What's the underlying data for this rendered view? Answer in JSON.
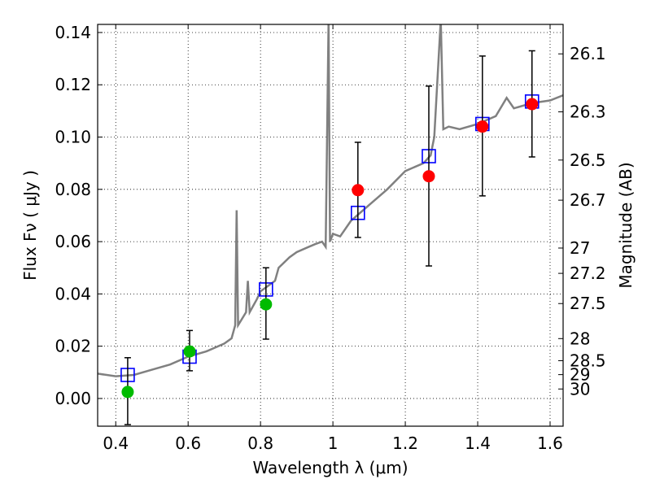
{
  "chart_data": {
    "type": "scatter",
    "title": "",
    "xlabel": "Wavelength  λ (μm)",
    "ylabel": "Flux  Fν  ( μJy )",
    "ylabel_right": "Magnitude (AB)",
    "xlim": [
      0.35,
      1.636
    ],
    "ylim": [
      -0.0106,
      0.1431
    ],
    "grid": true,
    "x_ticks": [
      0.4,
      0.6,
      0.8,
      1.0,
      1.2,
      1.4,
      1.6
    ],
    "x_tick_labels": [
      "0.4",
      "0.6",
      "0.8",
      "1",
      "1.2",
      "1.4",
      "1.6"
    ],
    "y_ticks": [
      0.0,
      0.02,
      0.04,
      0.06,
      0.08,
      0.1,
      0.12,
      0.14
    ],
    "y_tick_labels": [
      "0.00",
      "0.02",
      "0.04",
      "0.06",
      "0.08",
      "0.10",
      "0.12",
      "0.14"
    ],
    "right_ticks_mag": [
      "26.1",
      "26.3",
      "26.5",
      "26.7",
      "27",
      "27.2",
      "27.5",
      "28",
      "28.5",
      "29",
      "30"
    ],
    "colors": {
      "spectrum": "#808080",
      "model": "#0000ff",
      "detect_green": "#00bb00",
      "detect_red": "#ff0000",
      "errorbar": "#000000"
    },
    "series": [
      {
        "name": "spectrum",
        "kind": "line",
        "x": [
          0.35,
          0.4,
          0.45,
          0.5,
          0.55,
          0.6,
          0.65,
          0.7,
          0.72,
          0.73,
          0.734,
          0.738,
          0.76,
          0.765,
          0.77,
          0.79,
          0.8,
          0.82,
          0.84,
          0.85,
          0.88,
          0.9,
          0.95,
          0.97,
          0.98,
          0.988,
          0.992,
          1.0,
          1.02,
          1.05,
          1.1,
          1.15,
          1.2,
          1.25,
          1.27,
          1.28,
          1.298,
          1.305,
          1.32,
          1.35,
          1.4,
          1.45,
          1.48,
          1.5,
          1.55,
          1.6,
          1.636
        ],
        "y": [
          0.0095,
          0.0085,
          0.009,
          0.011,
          0.013,
          0.016,
          0.018,
          0.021,
          0.023,
          0.028,
          0.072,
          0.028,
          0.033,
          0.045,
          0.033,
          0.038,
          0.041,
          0.043,
          0.045,
          0.05,
          0.054,
          0.056,
          0.059,
          0.06,
          0.058,
          0.145,
          0.06,
          0.063,
          0.062,
          0.068,
          0.074,
          0.08,
          0.087,
          0.09,
          0.093,
          0.1,
          0.145,
          0.103,
          0.104,
          0.103,
          0.105,
          0.108,
          0.115,
          0.111,
          0.113,
          0.114,
          0.116
        ]
      },
      {
        "name": "model",
        "kind": "open-square",
        "x": [
          0.433,
          0.604,
          0.815,
          1.069,
          1.265,
          1.413,
          1.55
        ],
        "y": [
          0.009,
          0.016,
          0.0417,
          0.071,
          0.0927,
          0.105,
          0.1136
        ]
      },
      {
        "name": "observed-green",
        "kind": "circle",
        "x": [
          0.433,
          0.604,
          0.815
        ],
        "y": [
          0.0025,
          0.018,
          0.036
        ],
        "err_low": [
          -0.01,
          0.0106,
          0.0227
        ],
        "err_high": [
          0.0156,
          0.026,
          0.05
        ]
      },
      {
        "name": "observed-red",
        "kind": "circle",
        "x": [
          1.069,
          1.265,
          1.413,
          1.55
        ],
        "y": [
          0.0797,
          0.085,
          0.104,
          0.1126
        ],
        "err_low": [
          0.0616,
          0.0507,
          0.0775,
          0.0924
        ],
        "err_high": [
          0.098,
          0.1195,
          0.131,
          0.133
        ]
      }
    ]
  }
}
